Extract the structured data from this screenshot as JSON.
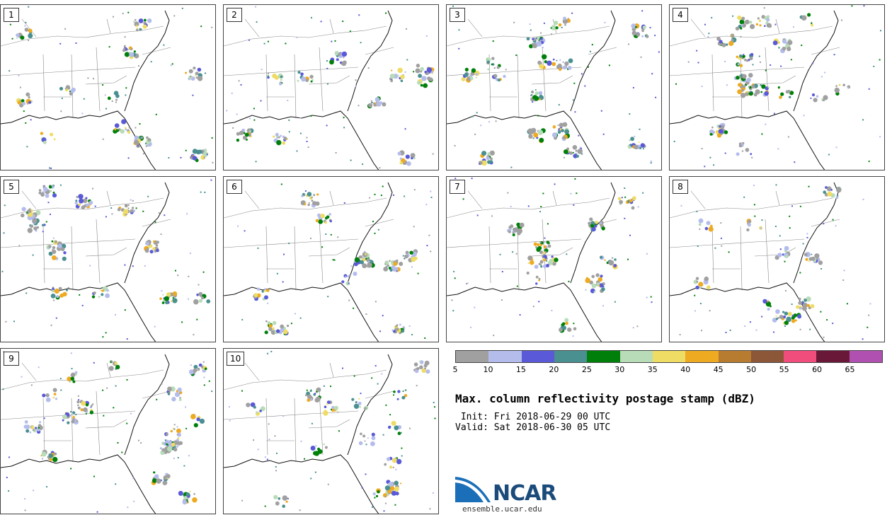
{
  "panels": [
    {
      "label": "1"
    },
    {
      "label": "2"
    },
    {
      "label": "3"
    },
    {
      "label": "4"
    },
    {
      "label": "5"
    },
    {
      "label": "6"
    },
    {
      "label": "7"
    },
    {
      "label": "8"
    },
    {
      "label": "9"
    },
    {
      "label": "10"
    }
  ],
  "colorbar": {
    "colors": [
      "#a0a0a0",
      "#b4bcec",
      "#5a5ad8",
      "#4a9090",
      "#00800a",
      "#b8dcb8",
      "#eedc64",
      "#eeaa20",
      "#b87c30",
      "#8c5638",
      "#f04c7c",
      "#6a1838",
      "#b050b0"
    ],
    "ticks": [
      "5",
      "10",
      "15",
      "20",
      "25",
      "30",
      "35",
      "40",
      "45",
      "50",
      "55",
      "60",
      "65"
    ]
  },
  "title": "Max. column reflectivity postage stamp (dBZ)",
  "init": " Init: Fri 2018-06-29 00 UTC",
  "valid": "Valid: Sat 2018-06-30 05 UTC",
  "logo": {
    "text": "NCAR",
    "url": "ensemble.ucar.edu",
    "color": "#1a6fb8"
  }
}
